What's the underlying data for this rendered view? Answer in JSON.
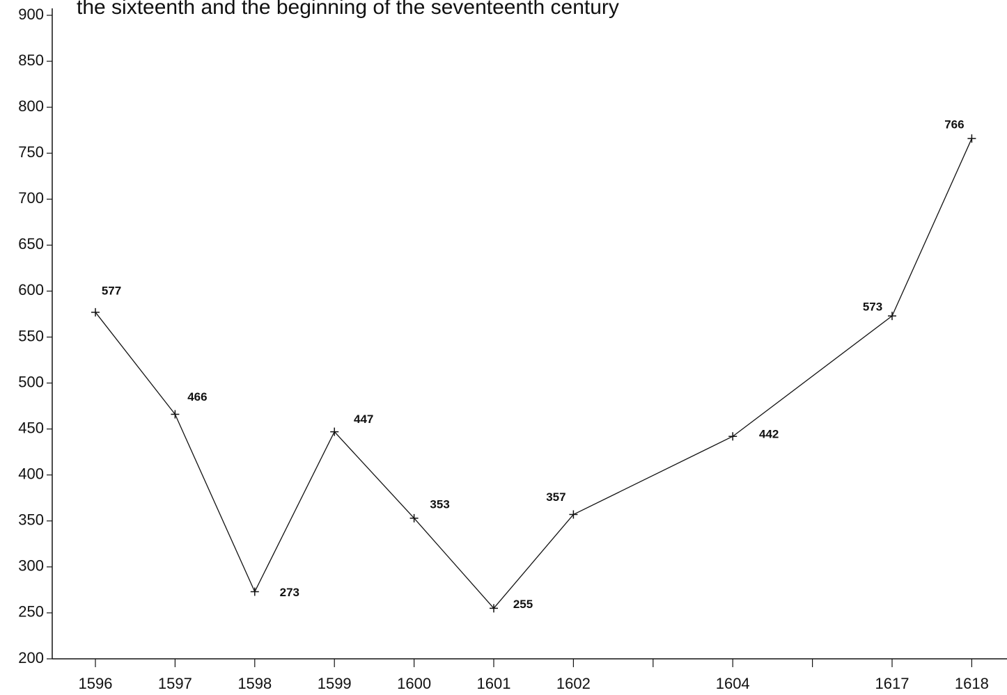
{
  "chart_data": {
    "type": "line",
    "title": "the sixteenth and the beginning of the seventeenth century",
    "categories": [
      "1596",
      "1597",
      "1598",
      "1599",
      "1600",
      "1601",
      "1602",
      null,
      "1604",
      null,
      "1617",
      "1618"
    ],
    "values": [
      577,
      466,
      273,
      447,
      353,
      255,
      357,
      null,
      442,
      null,
      573,
      766
    ],
    "color": "#111111",
    "ylim": [
      200,
      900
    ],
    "yticks": [
      200,
      250,
      300,
      350,
      400,
      450,
      500,
      550,
      600,
      650,
      700,
      750,
      800,
      850,
      900
    ],
    "grid": false
  }
}
